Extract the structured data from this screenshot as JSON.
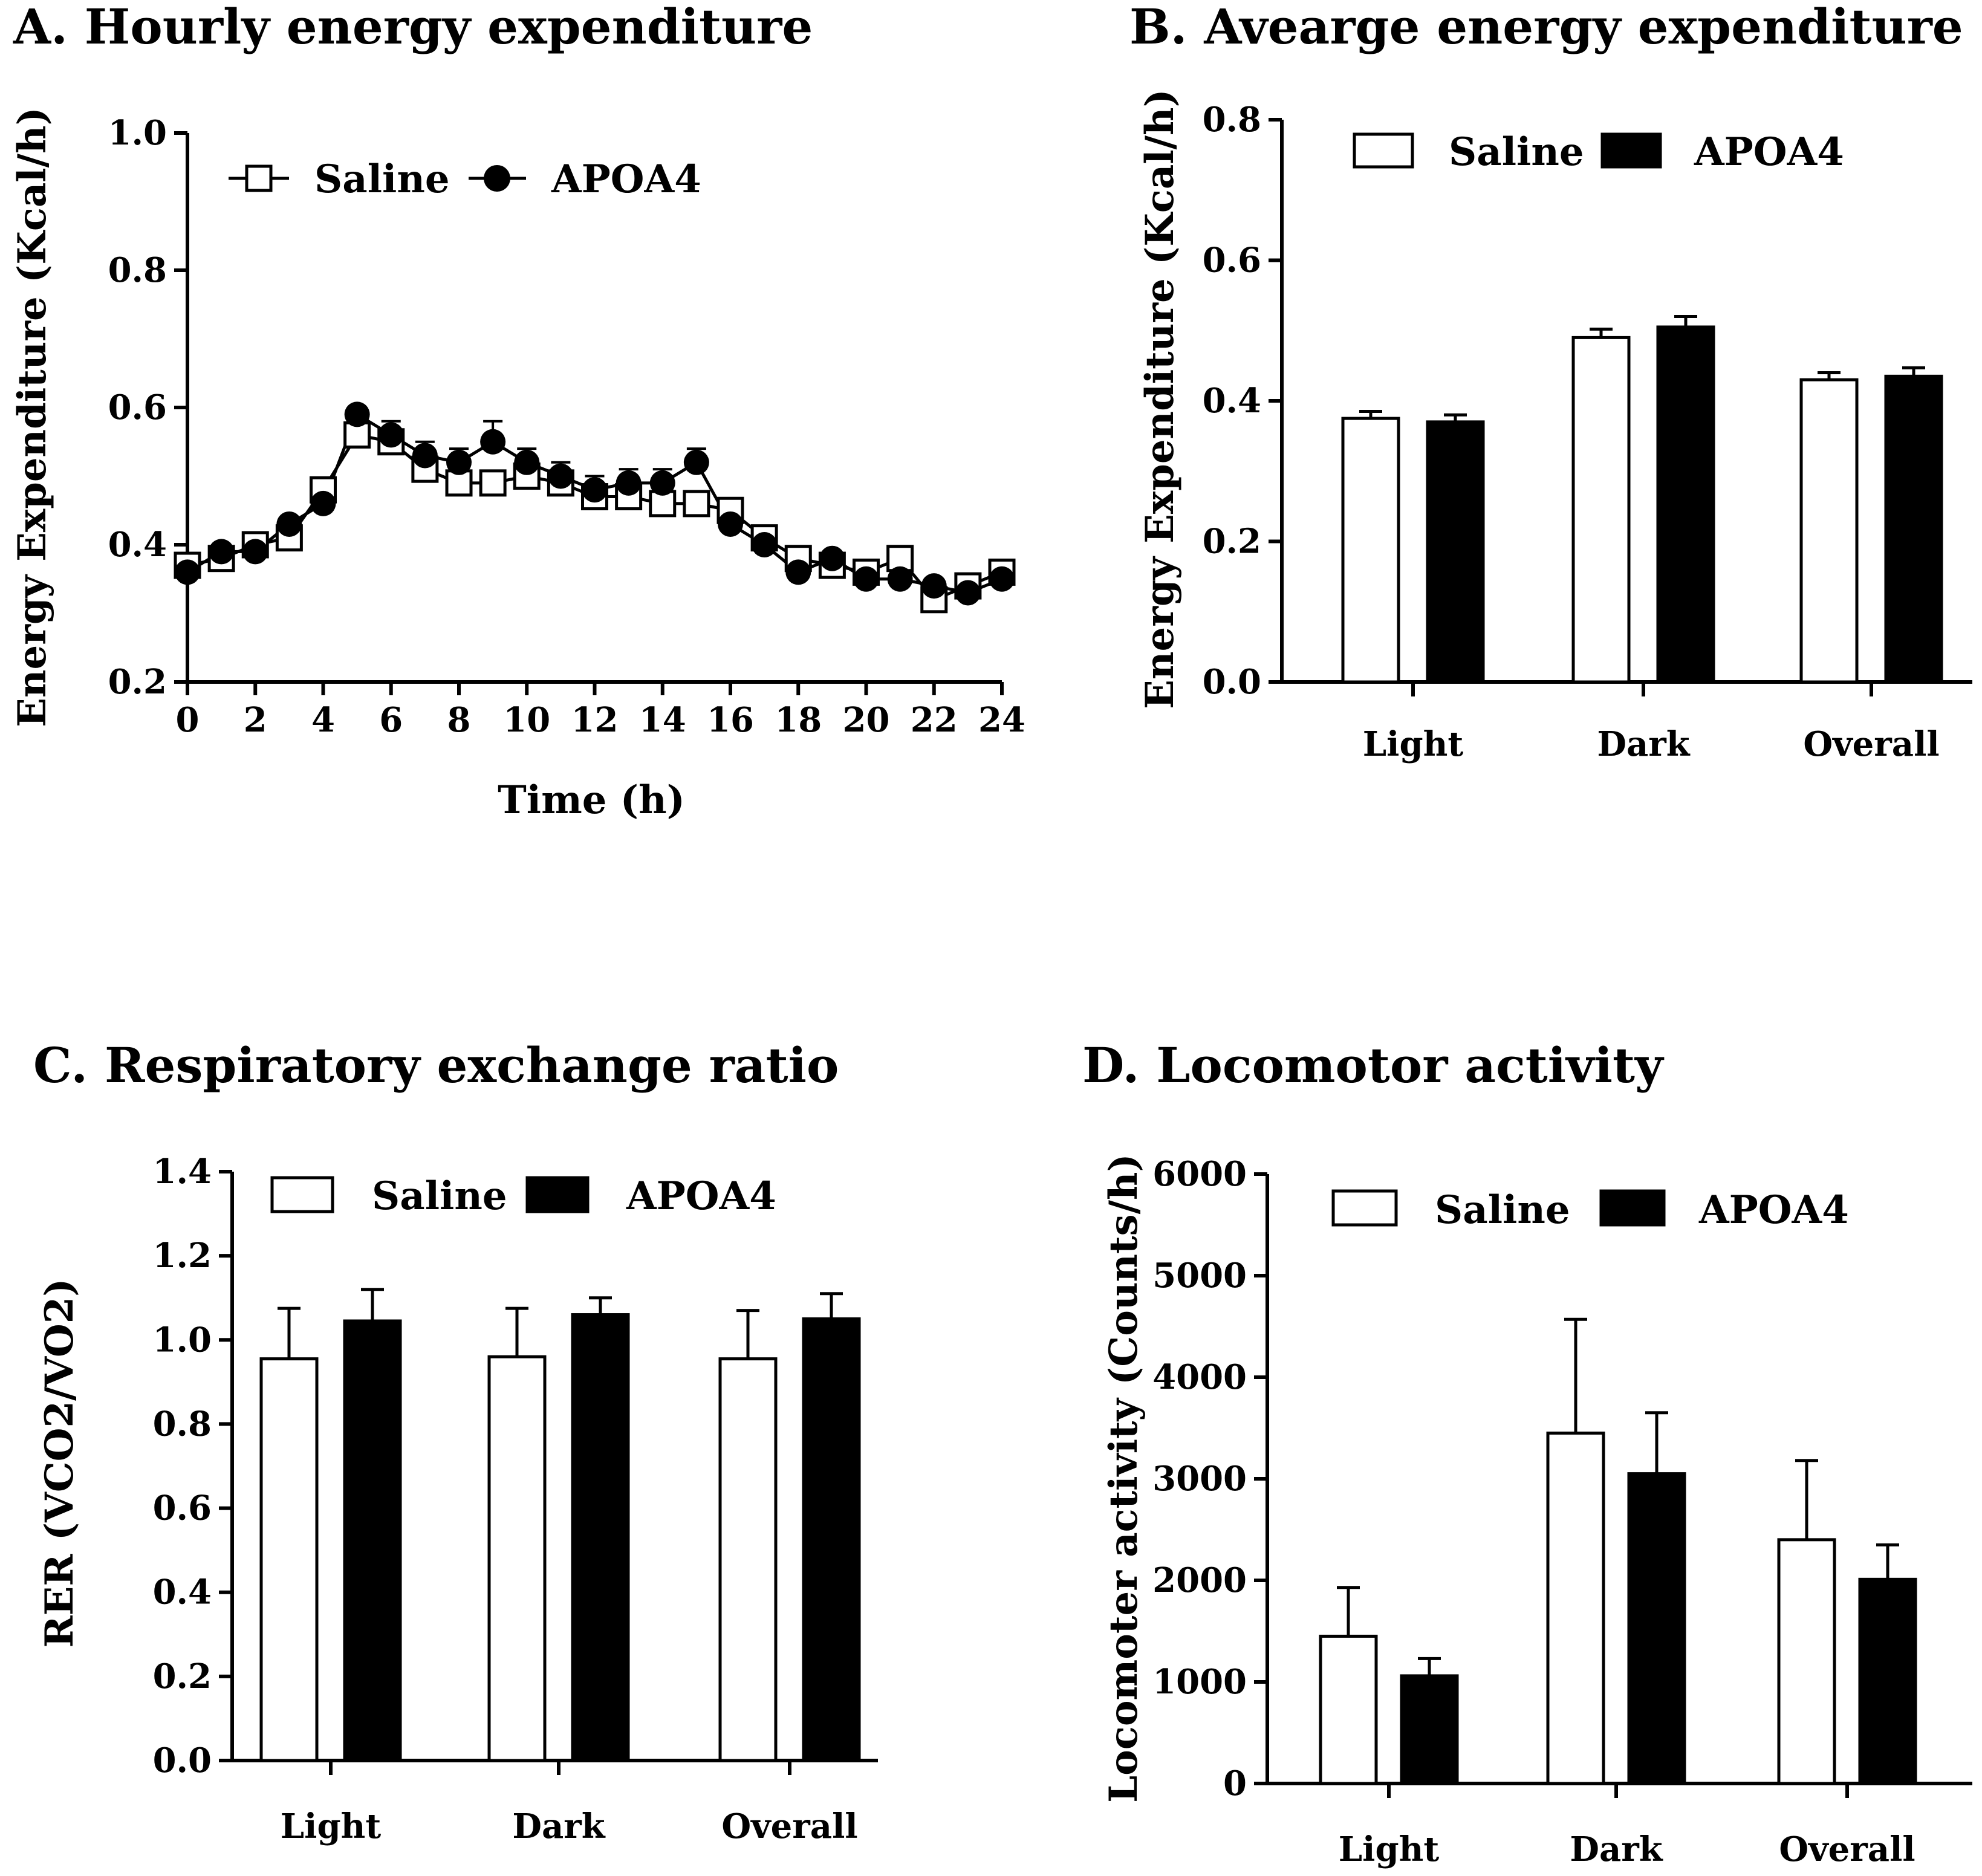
{
  "chart_data": [
    {
      "id": "A",
      "type": "line",
      "title": "A.  Hourly energy expenditure",
      "xlabel": "Time  (h)",
      "ylabel": "Energy Expenditure (Kcal/h)",
      "xlim": [
        0,
        24
      ],
      "ylim": [
        0.2,
        1.0
      ],
      "xticks": [
        0,
        2,
        4,
        6,
        8,
        10,
        12,
        14,
        16,
        18,
        20,
        22,
        24
      ],
      "yticks": [
        0.2,
        0.4,
        0.6,
        0.8,
        1.0
      ],
      "ytick_labels": [
        "0.2",
        "0.4",
        "0.6",
        "0.8",
        "1.0"
      ],
      "legend_position": "top-left",
      "grid": false,
      "x": [
        0,
        1,
        2,
        3,
        4,
        5,
        6,
        7,
        8,
        9,
        10,
        11,
        12,
        13,
        14,
        15,
        16,
        17,
        18,
        19,
        20,
        21,
        22,
        23,
        24
      ],
      "series": [
        {
          "name": "Saline",
          "marker": "open-square",
          "color": "#000000",
          "values": [
            0.37,
            0.38,
            0.4,
            0.41,
            0.48,
            0.56,
            0.55,
            0.51,
            0.49,
            0.49,
            0.5,
            0.49,
            0.47,
            0.47,
            0.46,
            0.46,
            0.45,
            0.41,
            0.38,
            0.37,
            0.36,
            0.38,
            0.32,
            0.34,
            0.36
          ],
          "errors": [
            0.01,
            0.01,
            0.01,
            0.01,
            0.01,
            0.01,
            0.01,
            0.01,
            0.01,
            0.01,
            0.01,
            0.01,
            0.01,
            0.01,
            0.01,
            0.01,
            0.01,
            0.01,
            0.01,
            0.01,
            0.01,
            0.01,
            0.01,
            0.01,
            0.01
          ]
        },
        {
          "name": "APOA4",
          "marker": "filled-circle",
          "color": "#000000",
          "values": [
            0.36,
            0.39,
            0.39,
            0.43,
            0.46,
            0.59,
            0.56,
            0.53,
            0.52,
            0.55,
            0.52,
            0.5,
            0.48,
            0.49,
            0.49,
            0.52,
            0.43,
            0.4,
            0.36,
            0.38,
            0.35,
            0.35,
            0.34,
            0.33,
            0.35
          ],
          "errors": [
            0.01,
            0.01,
            0.01,
            0.01,
            0.01,
            0.01,
            0.02,
            0.02,
            0.02,
            0.03,
            0.02,
            0.02,
            0.02,
            0.02,
            0.02,
            0.02,
            0.01,
            0.01,
            0.01,
            0.01,
            0.01,
            0.01,
            0.01,
            0.01,
            0.01
          ]
        }
      ]
    },
    {
      "id": "B",
      "type": "bar",
      "title": "B.  Avearge energy expenditure",
      "xlabel": "",
      "ylabel": "Energy Expenditure (Kcal/h)",
      "categories": [
        "Light",
        "Dark",
        "Overall"
      ],
      "ylim": [
        0,
        0.8
      ],
      "yticks": [
        0,
        0.2,
        0.4,
        0.6,
        0.8
      ],
      "ytick_labels": [
        "0.0",
        "0.2",
        "0.4",
        "0.6",
        "0.8"
      ],
      "legend_position": "top-left",
      "grid": false,
      "series": [
        {
          "name": "Saline",
          "fill": "#ffffff",
          "values": [
            0.375,
            0.49,
            0.43
          ],
          "errors": [
            0.01,
            0.012,
            0.01
          ]
        },
        {
          "name": "APOA4",
          "fill": "#000000",
          "values": [
            0.37,
            0.505,
            0.435
          ],
          "errors": [
            0.01,
            0.015,
            0.012
          ]
        }
      ]
    },
    {
      "id": "C",
      "type": "bar",
      "title": "C. Respiratory exchange ratio",
      "xlabel": "",
      "ylabel": "RER (VCO2/VO2)",
      "categories": [
        "Light",
        "Dark",
        "Overall"
      ],
      "ylim": [
        0,
        1.4
      ],
      "yticks": [
        0,
        0.2,
        0.4,
        0.6,
        0.8,
        1.0,
        1.2,
        1.4
      ],
      "ytick_labels": [
        "0.0",
        "0.2",
        "0.4",
        "0.6",
        "0.8",
        "1.0",
        "1.2",
        "1.4"
      ],
      "legend_position": "top-left",
      "grid": false,
      "series": [
        {
          "name": "Saline",
          "fill": "#ffffff",
          "values": [
            0.955,
            0.96,
            0.955
          ],
          "errors": [
            0.12,
            0.115,
            0.115
          ]
        },
        {
          "name": "APOA4",
          "fill": "#000000",
          "values": [
            1.045,
            1.06,
            1.05
          ],
          "errors": [
            0.075,
            0.04,
            0.06
          ]
        }
      ]
    },
    {
      "id": "D",
      "type": "bar",
      "title": "D. Locomotor activity",
      "xlabel": "",
      "ylabel": "Locomoter activity (Counts/h)",
      "categories": [
        "Light",
        "Dark",
        "Overall"
      ],
      "ylim": [
        0,
        6000
      ],
      "yticks": [
        0,
        1000,
        2000,
        3000,
        4000,
        5000,
        6000
      ],
      "ytick_labels": [
        "0",
        "1000",
        "2000",
        "3000",
        "4000",
        "5000",
        "6000"
      ],
      "legend_position": "top-left",
      "grid": false,
      "series": [
        {
          "name": "Saline",
          "fill": "#ffffff",
          "values": [
            1450,
            3450,
            2400
          ],
          "errors": [
            480,
            1120,
            780
          ]
        },
        {
          "name": "APOA4",
          "fill": "#000000",
          "values": [
            1060,
            3050,
            2010
          ],
          "errors": [
            170,
            600,
            340
          ]
        }
      ]
    }
  ]
}
